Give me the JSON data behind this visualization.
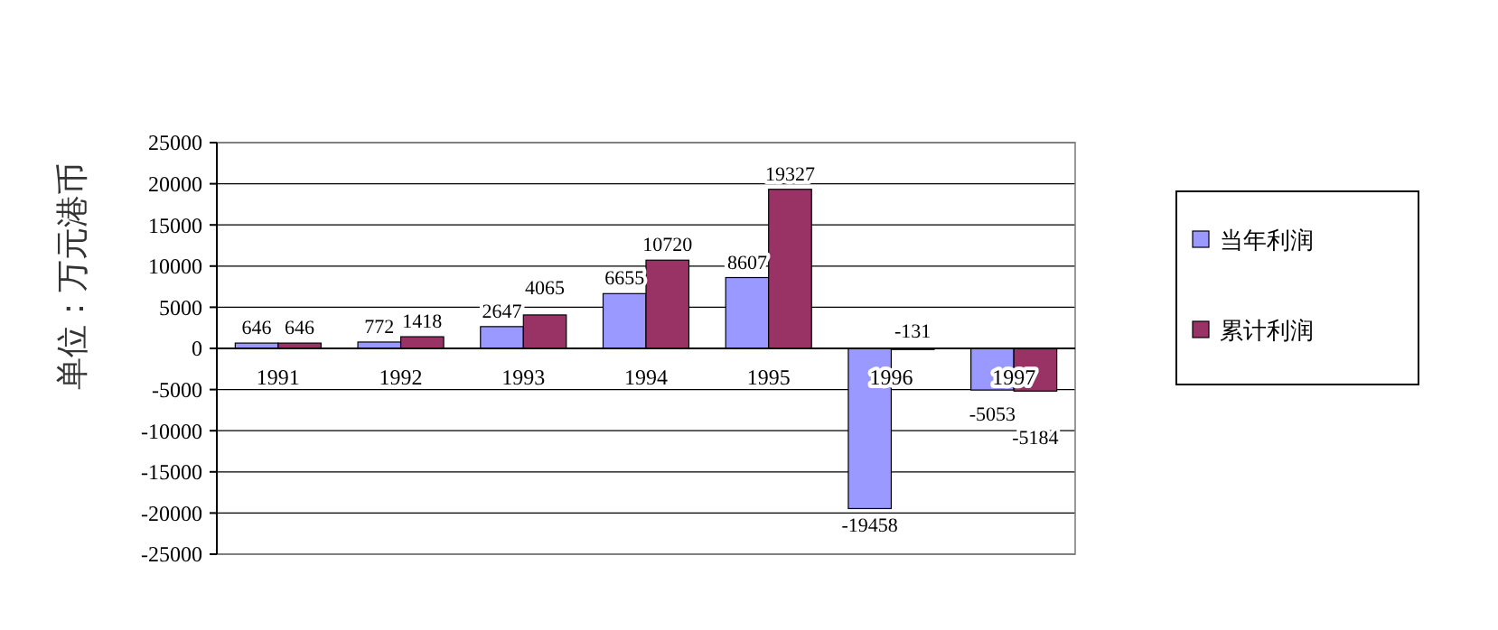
{
  "chart_data": {
    "type": "bar",
    "ylabel": "单位：万元港币",
    "categories": [
      "1991",
      "1992",
      "1993",
      "1994",
      "1995",
      "1996",
      "1997"
    ],
    "series": [
      {
        "name": "当年利润",
        "color": "#9999ff",
        "values": [
          646,
          772,
          2647,
          6655,
          8607,
          -19458,
          -5053
        ]
      },
      {
        "name": "累计利润",
        "color": "#993366",
        "values": [
          646,
          1418,
          4065,
          10720,
          19327,
          -131,
          -5184
        ]
      }
    ],
    "ylim": [
      -25000,
      25000
    ],
    "yticks": [
      -25000,
      -20000,
      -15000,
      -10000,
      -5000,
      0,
      5000,
      10000,
      15000,
      20000,
      25000
    ],
    "grid": "y",
    "legend": "right",
    "data_labels": true
  }
}
